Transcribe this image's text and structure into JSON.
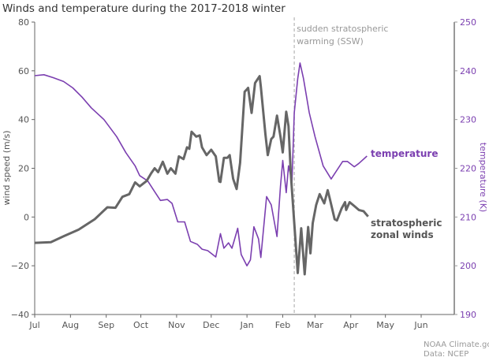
{
  "chart_data": {
    "type": "line",
    "title": "Winds and temperature during the 2017-2018 winter",
    "x_axis": {
      "type": "date",
      "range": [
        "2017-07-01",
        "2018-06-30"
      ],
      "tick_dates": [
        "2017-07-01",
        "2017-08-01",
        "2017-09-01",
        "2017-10-01",
        "2017-11-01",
        "2017-12-01",
        "2018-01-01",
        "2018-02-01",
        "2018-03-01",
        "2018-04-01",
        "2018-05-01",
        "2018-06-01"
      ],
      "tick_labels": [
        "Jul",
        "Aug",
        "Sep",
        "Oct",
        "Nov",
        "Dec",
        "Jan",
        "Feb",
        "Mar",
        "Apr",
        "May",
        "Jun"
      ]
    },
    "y_left": {
      "label": "wind speed (m/s)",
      "range": [
        -40,
        80
      ],
      "ticks": [
        -40,
        -20,
        0,
        20,
        40,
        60,
        80
      ],
      "tick_labels": [
        "−40",
        "−20",
        "0",
        "20",
        "40",
        "60",
        "80"
      ]
    },
    "y_right": {
      "label": "temperature (K)",
      "range": [
        190,
        250
      ],
      "ticks": [
        190,
        200,
        210,
        220,
        230,
        240,
        250
      ],
      "tick_labels": [
        "190",
        "200",
        "210",
        "220",
        "230",
        "240",
        "250"
      ]
    },
    "grid": false,
    "series": [
      {
        "name": "stratospheric zonal winds",
        "label_lines": [
          "stratospheric",
          "zonal winds"
        ],
        "axis": "left",
        "color": "#666666",
        "points": [
          [
            "2017-07-01",
            -10.6
          ],
          [
            "2017-07-15",
            -10.3
          ],
          [
            "2017-07-26",
            -7.9
          ],
          [
            "2017-08-08",
            -5.2
          ],
          [
            "2017-08-22",
            -0.9
          ],
          [
            "2017-09-02",
            4
          ],
          [
            "2017-09-09",
            3.8
          ],
          [
            "2017-09-15",
            8.3
          ],
          [
            "2017-09-21",
            9.4
          ],
          [
            "2017-09-26",
            14.2
          ],
          [
            "2017-09-30",
            12.6
          ],
          [
            "2017-10-06",
            14.8
          ],
          [
            "2017-10-10",
            18
          ],
          [
            "2017-10-13",
            20
          ],
          [
            "2017-10-16",
            18.4
          ],
          [
            "2017-10-20",
            22.7
          ],
          [
            "2017-10-24",
            17.8
          ],
          [
            "2017-10-27",
            20
          ],
          [
            "2017-10-31",
            17.8
          ],
          [
            "2017-11-03",
            24.9
          ],
          [
            "2017-11-07",
            23.8
          ],
          [
            "2017-11-10",
            28.6
          ],
          [
            "2017-11-12",
            28
          ],
          [
            "2017-11-14",
            35
          ],
          [
            "2017-11-18",
            33
          ],
          [
            "2017-11-21",
            33.5
          ],
          [
            "2017-11-23",
            28.6
          ],
          [
            "2017-11-27",
            25.4
          ],
          [
            "2017-12-01",
            27.6
          ],
          [
            "2017-12-05",
            24.9
          ],
          [
            "2017-12-08",
            14.6
          ],
          [
            "2017-12-09",
            14.4
          ],
          [
            "2017-12-12",
            24.3
          ],
          [
            "2017-12-15",
            24.3
          ],
          [
            "2017-12-17",
            25.4
          ],
          [
            "2017-12-20",
            15.7
          ],
          [
            "2017-12-23",
            11.5
          ],
          [
            "2017-12-26",
            22.2
          ],
          [
            "2017-12-30",
            51.4
          ],
          [
            "2018-01-01",
            52.4
          ],
          [
            "2018-01-02",
            53
          ],
          [
            "2018-01-05",
            42.7
          ],
          [
            "2018-01-08",
            55
          ],
          [
            "2018-01-12",
            57.8
          ],
          [
            "2018-01-13",
            53.5
          ],
          [
            "2018-01-17",
            34
          ],
          [
            "2018-01-19",
            25.4
          ],
          [
            "2018-01-22",
            32
          ],
          [
            "2018-01-24",
            33
          ],
          [
            "2018-01-27",
            41.6
          ],
          [
            "2018-01-30",
            33
          ],
          [
            "2018-02-01",
            26.5
          ],
          [
            "2018-02-04",
            43.2
          ],
          [
            "2018-02-06",
            37.3
          ],
          [
            "2018-02-08",
            17.8
          ],
          [
            "2018-02-11",
            -2.5
          ],
          [
            "2018-02-14",
            -23
          ],
          [
            "2018-02-17",
            -4.6
          ],
          [
            "2018-02-20",
            -23.5
          ],
          [
            "2018-02-23",
            -4.1
          ],
          [
            "2018-02-25",
            -14.9
          ],
          [
            "2018-02-27",
            -2.5
          ],
          [
            "2018-03-02",
            5
          ],
          [
            "2018-03-05",
            9.4
          ],
          [
            "2018-03-09",
            5.6
          ],
          [
            "2018-03-12",
            11
          ],
          [
            "2018-03-14",
            7.2
          ],
          [
            "2018-03-18",
            -0.9
          ],
          [
            "2018-03-20",
            -1.4
          ],
          [
            "2018-03-24",
            3.5
          ],
          [
            "2018-03-27",
            6.1
          ],
          [
            "2018-03-28",
            2.9
          ],
          [
            "2018-03-31",
            6.1
          ],
          [
            "2018-04-04",
            4.5
          ],
          [
            "2018-04-08",
            2.9
          ],
          [
            "2018-04-12",
            2.4
          ],
          [
            "2018-04-16",
            0.2
          ]
        ]
      },
      {
        "name": "temperature",
        "label_lines": [
          "temperature"
        ],
        "axis": "right",
        "color": "#7b3fb0",
        "points": [
          [
            "2017-07-01",
            239
          ],
          [
            "2017-07-09",
            239.2
          ],
          [
            "2017-07-17",
            238.6
          ],
          [
            "2017-07-26",
            237.8
          ],
          [
            "2017-08-03",
            236.5
          ],
          [
            "2017-08-11",
            234.6
          ],
          [
            "2017-08-19",
            232.4
          ],
          [
            "2017-08-30",
            230
          ],
          [
            "2017-09-10",
            226.5
          ],
          [
            "2017-09-18",
            223.2
          ],
          [
            "2017-09-26",
            220.5
          ],
          [
            "2017-09-30",
            218.5
          ],
          [
            "2017-10-07",
            217.4
          ],
          [
            "2017-10-13",
            215.2
          ],
          [
            "2017-10-18",
            213.4
          ],
          [
            "2017-10-24",
            213.6
          ],
          [
            "2017-10-28",
            212.8
          ],
          [
            "2017-11-02",
            209
          ],
          [
            "2017-11-08",
            209
          ],
          [
            "2017-11-13",
            205
          ],
          [
            "2017-11-19",
            204.4
          ],
          [
            "2017-11-23",
            203.4
          ],
          [
            "2017-11-28",
            203.1
          ],
          [
            "2017-12-05",
            201.8
          ],
          [
            "2017-12-09",
            206.6
          ],
          [
            "2017-12-12",
            203.6
          ],
          [
            "2017-12-16",
            204.7
          ],
          [
            "2017-12-19",
            203.6
          ],
          [
            "2017-12-21",
            205.2
          ],
          [
            "2017-12-24",
            207.7
          ],
          [
            "2017-12-27",
            202.3
          ],
          [
            "2018-01-01",
            200
          ],
          [
            "2018-01-04",
            201.2
          ],
          [
            "2018-01-07",
            208
          ],
          [
            "2018-01-11",
            205.5
          ],
          [
            "2018-01-13",
            201.7
          ],
          [
            "2018-01-18",
            214.2
          ],
          [
            "2018-01-22",
            212.5
          ],
          [
            "2018-01-27",
            206
          ],
          [
            "2018-01-30",
            216.3
          ],
          [
            "2018-02-01",
            221.6
          ],
          [
            "2018-02-04",
            215
          ],
          [
            "2018-02-06",
            220.5
          ],
          [
            "2018-02-09",
            217.3
          ],
          [
            "2018-02-11",
            231.4
          ],
          [
            "2018-02-14",
            238.4
          ],
          [
            "2018-02-16",
            241.6
          ],
          [
            "2018-02-19",
            238.4
          ],
          [
            "2018-02-24",
            231.4
          ],
          [
            "2018-03-01",
            226.5
          ],
          [
            "2018-03-08",
            220.5
          ],
          [
            "2018-03-15",
            217.8
          ],
          [
            "2018-03-18",
            218.9
          ],
          [
            "2018-03-25",
            221.4
          ],
          [
            "2018-03-29",
            221.4
          ],
          [
            "2018-04-04",
            220.3
          ],
          [
            "2018-04-08",
            221
          ],
          [
            "2018-04-15",
            222.5
          ]
        ]
      }
    ],
    "annotations": [
      {
        "type": "vertical-dashed-line",
        "date": "2018-02-11",
        "text_lines": [
          "sudden stratospheric",
          "warming (SSW)"
        ],
        "color": "#bbbbbb"
      }
    ]
  },
  "footer": {
    "credit": "NOAA Climate.gov",
    "source": "Data: NCEP"
  },
  "colors": {
    "wind": "#666666",
    "temperature": "#7b3fb0",
    "axis_text": "#555555",
    "annotation": "#999999"
  }
}
